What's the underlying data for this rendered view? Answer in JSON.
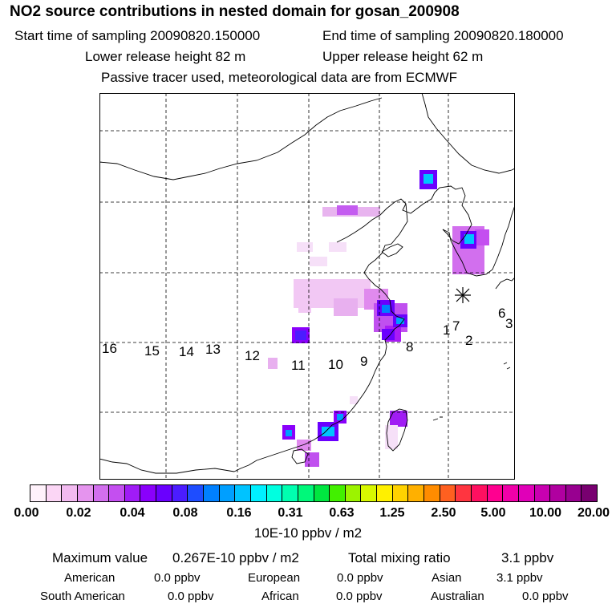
{
  "header": {
    "title": "NO2 source contributions in nested domain for gosan_200908",
    "start_time": "Start time of sampling 20090820.150000",
    "end_time": "End time of sampling 20090820.180000",
    "lower_height": "Lower release height   82 m",
    "upper_height": "Upper release height   62 m",
    "tracer_note": "Passive tracer used, meteorological data are from ECMWF"
  },
  "map": {
    "receptor_labels": [
      "1",
      "2",
      "3",
      "6",
      "7",
      "8",
      "9",
      "10",
      "11",
      "12",
      "13",
      "14",
      "15",
      "16"
    ]
  },
  "colorbar": {
    "cell_colors": [
      "#fff2fb",
      "#fbd6f5",
      "#f2baf0",
      "#e594ee",
      "#d26fee",
      "#c44ff0",
      "#a01cf6",
      "#8a00fb",
      "#6a00fe",
      "#4b1cff",
      "#1e4dff",
      "#0080ff",
      "#009fff",
      "#00c3ff",
      "#00f0ff",
      "#00ffe0",
      "#00ffb0",
      "#00f87a",
      "#00e640",
      "#42f000",
      "#9cf300",
      "#d8f800",
      "#fff000",
      "#ffd200",
      "#ffb000",
      "#ff8c00",
      "#ff6020",
      "#ff3540",
      "#ff1060",
      "#ff0090",
      "#f000a8",
      "#e000b8",
      "#c800b0",
      "#b000a0",
      "#980090",
      "#780070"
    ],
    "tick_labels": [
      "0.00",
      "0.02",
      "0.04",
      "0.08",
      "0.16",
      "0.31",
      "0.63",
      "1.25",
      "2.50",
      "5.00",
      "10.00",
      "20.00"
    ],
    "units": "10E-10 ppbv / m2"
  },
  "summary": {
    "max_label": "Maximum value",
    "max_value": "0.267E-10 ppbv / m2",
    "total_label": "Total mixing ratio",
    "total_value": "3.1 ppbv"
  },
  "regions": {
    "american_label": "American",
    "american_value": "0.0 ppbv",
    "european_label": "European",
    "european_value": "0.0 ppbv",
    "asian_label": "Asian",
    "asian_value": "3.1 ppbv",
    "south_american_label": "South American",
    "south_american_value": "0.0 ppbv",
    "african_label": "African",
    "african_value": "0.0 ppbv",
    "australian_label": "Australian",
    "australian_value": "0.0 ppbv"
  }
}
